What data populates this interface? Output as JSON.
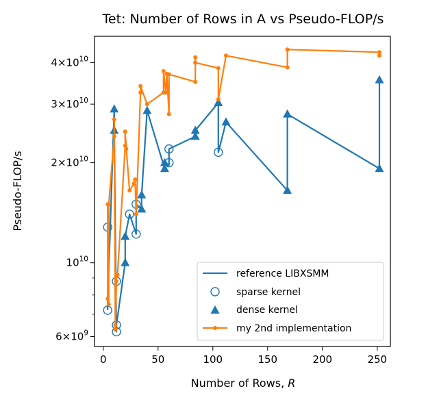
{
  "chart_data": {
    "type": "line",
    "title": "Tet: Number of Rows in A vs Pseudo-FLOP/s",
    "xlabel": "Number of Rows, R",
    "xlabel_main": "Number of Rows, ",
    "xlabel_var": "R",
    "ylabel": "Pseudo-FLOP/s",
    "xlim": [
      -8,
      262
    ],
    "ylim": [
      5600000000.0,
      48000000000.0
    ],
    "yscale": "log",
    "grid": false,
    "legend_position": "lower-right",
    "x_ticks": [
      {
        "value": 0,
        "label": "0"
      },
      {
        "value": 50,
        "label": "50"
      },
      {
        "value": 100,
        "label": "100"
      },
      {
        "value": 150,
        "label": "150"
      },
      {
        "value": 200,
        "label": "200"
      },
      {
        "value": 250,
        "label": "250"
      }
    ],
    "y_ticks": [
      {
        "value": 6000000000.0,
        "mantissa": "6",
        "exponent": "9"
      },
      {
        "value": 10000000000.0,
        "mantissa": "",
        "exponent": "10"
      },
      {
        "value": 20000000000.0,
        "mantissa": "2",
        "exponent": "10"
      },
      {
        "value": 30000000000.0,
        "mantissa": "3",
        "exponent": "10"
      },
      {
        "value": 40000000000.0,
        "mantissa": "4",
        "exponent": "10"
      }
    ],
    "y_minor_ticks": [
      7000000000.0,
      8000000000.0,
      9000000000.0
    ],
    "series": [
      {
        "name": "reference LIBXSMM",
        "color": "#1f77b4",
        "kind": "line",
        "x": [
          4,
          4,
          10,
          10,
          12,
          12,
          20,
          20,
          24,
          30,
          30,
          35,
          35,
          40,
          56,
          56,
          60,
          60,
          84,
          84,
          105,
          105,
          112,
          168,
          168,
          252,
          252
        ],
        "y": [
          7200000000.0,
          7500000000.0,
          29000000000.0,
          25000000000.0,
          6200000000.0,
          6500000000.0,
          10000000000.0,
          12000000000.0,
          14000000000.0,
          12200000000.0,
          15000000000.0,
          14500000000.0,
          16000000000.0,
          28700000000.0,
          19200000000.0,
          20000000000.0,
          19700000000.0,
          22000000000.0,
          24000000000.0,
          25000000000.0,
          30300000000.0,
          21500000000.0,
          26500000000.0,
          16500000000.0,
          28000000000.0,
          19200000000.0,
          35500000000.0
        ]
      },
      {
        "name": "sparse kernel",
        "color": "#1f77b4",
        "kind": "open-circle",
        "x": [
          4,
          4,
          12,
          12,
          12,
          24,
          30,
          30,
          60,
          60,
          105
        ],
        "y": [
          7200000000.0,
          12800000000.0,
          8800000000.0,
          6200000000.0,
          6500000000.0,
          14000000000.0,
          12200000000.0,
          15000000000.0,
          20000000000.0,
          22000000000.0,
          21500000000.0
        ]
      },
      {
        "name": "dense kernel",
        "color": "#1f77b4",
        "kind": "triangle",
        "x": [
          10,
          10,
          20,
          20,
          35,
          35,
          40,
          56,
          56,
          84,
          84,
          105,
          112,
          168,
          168,
          252,
          252
        ],
        "y": [
          29000000000.0,
          25000000000.0,
          10000000000.0,
          12000000000.0,
          14500000000.0,
          16000000000.0,
          28700000000.0,
          19200000000.0,
          20000000000.0,
          24000000000.0,
          25000000000.0,
          30300000000.0,
          26500000000.0,
          16500000000.0,
          28000000000.0,
          19200000000.0,
          35500000000.0
        ]
      },
      {
        "name": "my 2nd implementation",
        "color": "#ff7f0e",
        "kind": "line-dot",
        "x": [
          4,
          4,
          5,
          5,
          10,
          10,
          11,
          11,
          12,
          12,
          13,
          20,
          20,
          21,
          24,
          28,
          29,
          30,
          34,
          34,
          40,
          55,
          55,
          57,
          58,
          60,
          60,
          84,
          84,
          84,
          84,
          105,
          105,
          112,
          168,
          168,
          252,
          252
        ],
        "y": [
          15000000000.0,
          7800000000.0,
          7500000000.0,
          15000000000.0,
          24000000000.0,
          27000000000.0,
          6500000000.0,
          6300000000.0,
          8800000000.0,
          9200000000.0,
          9200000000.0,
          22500000000.0,
          24800000000.0,
          22000000000.0,
          16500000000.0,
          17300000000.0,
          17800000000.0,
          14000000000.0,
          32500000000.0,
          34000000000.0,
          30000000000.0,
          32500000000.0,
          37700000000.0,
          32500000000.0,
          37000000000.0,
          28000000000.0,
          36900000000.0,
          35000000000.0,
          40000000000.0,
          41500000000.0,
          40000000000.0,
          38500000000.0,
          31000000000.0,
          42000000000.0,
          38700000000.0,
          43800000000.0,
          43000000000.0,
          42000000000.0
        ]
      }
    ]
  }
}
